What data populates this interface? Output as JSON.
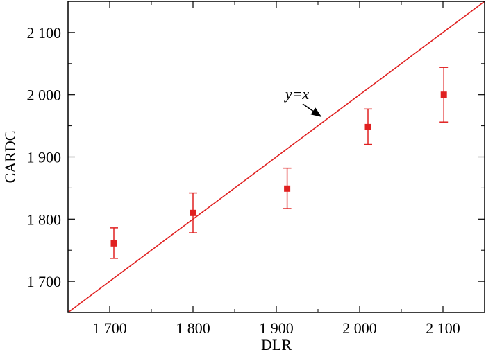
{
  "chart_data": {
    "type": "scatter",
    "xlabel": "DLR",
    "ylabel": "CARDC",
    "xlim": [
      1650,
      2150
    ],
    "ylim": [
      1650,
      2150
    ],
    "x_ticks": [
      1700,
      1800,
      1900,
      2000,
      2100
    ],
    "x_tick_labels": [
      "1 700",
      "1 800",
      "1 900",
      "2 000",
      "2 100"
    ],
    "y_ticks": [
      1700,
      1800,
      1900,
      2000,
      2100
    ],
    "y_tick_labels": [
      "1 700",
      "1 800",
      "1 900",
      "2 000",
      "2 100"
    ],
    "grid": false,
    "series": [
      {
        "color": "#e02020",
        "points": [
          {
            "x": 1705,
            "y": 1761,
            "err_low": 1737,
            "err_high": 1786
          },
          {
            "x": 1800,
            "y": 1810,
            "err_low": 1778,
            "err_high": 1842
          },
          {
            "x": 1913,
            "y": 1849,
            "err_low": 1817,
            "err_high": 1882
          },
          {
            "x": 2010,
            "y": 1948,
            "err_low": 1920,
            "err_high": 1977
          },
          {
            "x": 2101,
            "y": 2000,
            "err_low": 1956,
            "err_high": 2044
          }
        ]
      }
    ],
    "reference_line": {
      "label": "y=x",
      "color": "#e02020"
    },
    "annotation": {
      "text": "y=x",
      "arrow_color": "#000000"
    }
  }
}
